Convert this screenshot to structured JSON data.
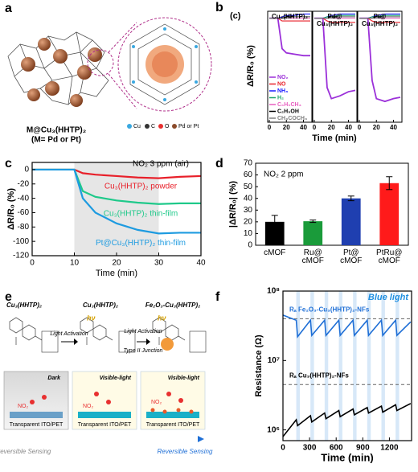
{
  "panel_labels": [
    "a",
    "b",
    "c",
    "d",
    "e",
    "f"
  ],
  "panel_a": {
    "caption": [
      "M@Cu₃(HHTP)₂",
      "(M= Pd or Pt)"
    ],
    "legend": [
      "Cu",
      "C",
      "O",
      "Pd or Pt"
    ]
  },
  "panel_e": {
    "stages": [
      {
        "title": "Cu₃(HHTP)₂",
        "condition": "Dark"
      },
      {
        "title": "Cu₃(HHTP)₂",
        "condition": "Visible-light"
      },
      {
        "title": "Fe₂O₃-Cu₃(HHTP)₂",
        "condition": "Visible-light"
      }
    ],
    "arrows": [
      "Light Activation",
      "Light Activation",
      "Type II Junction"
    ],
    "photon": "hν",
    "gas": "NO₂",
    "substrate": "Transparent ITO/PET",
    "bottom": [
      "Irreversible Sensing",
      "Reversible Sensing"
    ]
  },
  "chart_data": [
    {
      "type": "multi_line",
      "label": "(c)",
      "xlabel": "Time (min)",
      "ylabel": "ΔR/R₀ (%)",
      "x": [
        0,
        5,
        10,
        15,
        20,
        30,
        40,
        48
      ],
      "xlim": [
        0,
        48
      ],
      "xticks": [
        0,
        20,
        40
      ],
      "ylim": [
        -75,
        5
      ],
      "series": [
        {
          "name": "NO₂",
          "color": "#9b30d9"
        },
        {
          "name": "NO",
          "color": "#e8202a"
        },
        {
          "name": "NH₃",
          "color": "#1a1aff"
        },
        {
          "name": "H₂",
          "color": "#1aa36b"
        },
        {
          "name": "C₆H₅CH₃",
          "color": "#e85fc0"
        },
        {
          "name": "C₂H₅OH",
          "color": "#000000"
        },
        {
          "name": "CH₃COCH₃",
          "color": "#808080"
        }
      ],
      "panels": [
        {
          "title": "Cu₃(HHTP)₂",
          "values": [
            [
              0,
              0,
              0,
              -22,
              -25,
              -26,
              -27,
              -27
            ],
            [
              0,
              0,
              0,
              -2,
              -2,
              -2,
              -2,
              -2
            ],
            [
              0,
              0,
              0,
              1,
              2,
              2,
              3,
              3
            ],
            [
              0,
              0,
              0,
              0,
              1,
              1,
              1,
              1
            ],
            [
              0,
              0,
              0,
              0,
              0,
              0,
              0,
              0
            ],
            [
              0,
              0,
              0,
              0,
              1,
              1,
              1,
              1
            ],
            [
              0,
              0,
              0,
              0,
              0,
              1,
              1,
              1
            ]
          ]
        },
        {
          "title": "Pd@ Cu₃(HHTP)₂",
          "values": [
            [
              0,
              0,
              0,
              -50,
              -58,
              -56,
              -53,
              -52
            ],
            [
              0,
              0,
              0,
              -2,
              -3,
              -3,
              -3,
              -3
            ],
            [
              0,
              0,
              0,
              1,
              2,
              3,
              3,
              3
            ],
            [
              0,
              0,
              0,
              1,
              1,
              2,
              2,
              2
            ],
            [
              0,
              0,
              0,
              0,
              0,
              0,
              0,
              0
            ],
            [
              0,
              0,
              0,
              0,
              1,
              1,
              1,
              1
            ],
            [
              0,
              0,
              0,
              0,
              0,
              1,
              1,
              1
            ]
          ]
        },
        {
          "title": "Pt@ Cu₃(HHTP)₂",
          "values": [
            [
              0,
              0,
              0,
              -45,
              -58,
              -60,
              -58,
              -57
            ],
            [
              0,
              0,
              0,
              -2,
              -3,
              -3,
              -3,
              -3
            ],
            [
              0,
              0,
              0,
              1,
              2,
              3,
              3,
              3
            ],
            [
              0,
              0,
              0,
              1,
              1,
              2,
              2,
              2
            ],
            [
              0,
              0,
              0,
              0,
              0,
              0,
              0,
              0
            ],
            [
              0,
              0,
              0,
              0,
              1,
              1,
              1,
              1
            ],
            [
              0,
              0,
              0,
              0,
              0,
              1,
              1,
              1
            ]
          ]
        }
      ]
    },
    {
      "type": "line",
      "annotation": "NO₂ 3 ppm (air)",
      "xlabel": "Time (min)",
      "ylabel": "ΔR/R₀ (%)",
      "x": [
        0,
        5,
        10,
        12,
        15,
        20,
        25,
        30,
        35,
        40
      ],
      "xlim": [
        0,
        40
      ],
      "xticks": [
        0,
        10,
        20,
        30,
        40
      ],
      "ylim": [
        -120,
        10
      ],
      "yticks": [
        0,
        -20,
        -40,
        -60,
        -80,
        -100,
        -120
      ],
      "highlight_x": [
        10,
        30
      ],
      "series": [
        {
          "name": "Cu₃(HHTP)₂ powder",
          "color": "#e8202a",
          "values": [
            0,
            0,
            0,
            -5,
            -7,
            -9,
            -11,
            -12,
            -10,
            -9
          ]
        },
        {
          "name": "Cu₃(HHTP)₂ thin-film",
          "color": "#1fc98a",
          "values": [
            0,
            0,
            0,
            -30,
            -38,
            -43,
            -46,
            -48,
            -47,
            -47
          ]
        },
        {
          "name": "Pt@Cu₃(HHTP)₂ thin-film",
          "color": "#1e9be0",
          "values": [
            0,
            0,
            0,
            -40,
            -60,
            -75,
            -84,
            -89,
            -88,
            -88
          ]
        }
      ]
    },
    {
      "type": "bar",
      "annotation": "NO₂ 2 ppm",
      "ylabel": "|ΔR/R₀| (%)",
      "categories": [
        "cMOF",
        "Ru@ cMOF",
        "Pt@ cMOF",
        "PtRu@ cMOF"
      ],
      "values": [
        20,
        20.5,
        40,
        53
      ],
      "errors": [
        5.5,
        1,
        2,
        5.5
      ],
      "colors": [
        "#000000",
        "#1a9b3a",
        "#1f3fb0",
        "#ff1a1a"
      ],
      "ylim": [
        0,
        70
      ],
      "yticks": [
        0,
        10,
        20,
        30,
        40,
        50,
        60,
        70
      ]
    },
    {
      "type": "line",
      "log_y": true,
      "annotation": "Blue light",
      "xlabel": "Time (min)",
      "ylabel": "Resistance (Ω)",
      "x": [
        0,
        150,
        165,
        310,
        325,
        470,
        485,
        630,
        645,
        790,
        805,
        950,
        965,
        1110,
        1125,
        1270,
        1285,
        1440
      ],
      "xlim": [
        0,
        1450
      ],
      "xticks": [
        0,
        300,
        600,
        900,
        1200
      ],
      "ylim": [
        700000,
        100000000
      ],
      "yticks": [
        {
          "value": 1000000,
          "label": "10⁶"
        },
        {
          "value": 10000000,
          "label": "10⁷"
        },
        {
          "value": 100000000,
          "label": "10⁸"
        }
      ],
      "light_periods": [
        [
          150,
          190
        ],
        [
          310,
          350
        ],
        [
          470,
          510
        ],
        [
          630,
          670
        ],
        [
          790,
          830
        ],
        [
          950,
          990
        ],
        [
          1110,
          1150
        ],
        [
          1270,
          1310
        ]
      ],
      "reference_lines": [
        40000000,
        4500000
      ],
      "series": [
        {
          "name": "Rₐ Fe₂O₃-Cu₃(HHTP)₂-NFs",
          "color": "#1f6fd6",
          "values": [
            45000000,
            38000000,
            22000000,
            38000000,
            23000000,
            38000000,
            23000000,
            38000000,
            23000000,
            38000000,
            23000000,
            38000000,
            23000000,
            38000000,
            23000000,
            38000000,
            23000000,
            36000000
          ]
        },
        {
          "name": "Rₐ Cu₃(HHTP)₂-NFs",
          "color": "#000000",
          "values": [
            800000,
            1400000,
            1150000,
            1600000,
            1300000,
            1750000,
            1450000,
            1900000,
            1550000,
            2000000,
            1650000,
            2100000,
            1750000,
            2200000,
            1800000,
            2300000,
            1900000,
            2400000
          ]
        }
      ]
    }
  ]
}
